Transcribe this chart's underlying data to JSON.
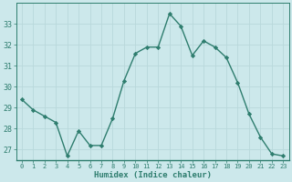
{
  "x": [
    0,
    1,
    2,
    3,
    4,
    5,
    6,
    7,
    8,
    9,
    10,
    11,
    12,
    13,
    14,
    15,
    16,
    17,
    18,
    19,
    20,
    21,
    22,
    23
  ],
  "y": [
    29.4,
    28.9,
    28.6,
    28.3,
    26.7,
    27.9,
    27.2,
    27.2,
    28.5,
    30.3,
    31.6,
    31.9,
    31.9,
    33.5,
    32.9,
    31.5,
    32.2,
    31.9,
    31.4,
    30.2,
    28.7,
    27.6,
    26.8,
    26.7
  ],
  "line_color": "#2e7d6e",
  "bg_color": "#cce8eb",
  "grid_color": "#b8d8db",
  "axis_color": "#2e7d6e",
  "xlabel": "Humidex (Indice chaleur)",
  "ylim": [
    26.5,
    34.0
  ],
  "yticks": [
    27,
    28,
    29,
    30,
    31,
    32,
    33
  ],
  "font_color": "#2e7d6e",
  "marker": "D",
  "markersize": 2.2,
  "linewidth": 1.0
}
